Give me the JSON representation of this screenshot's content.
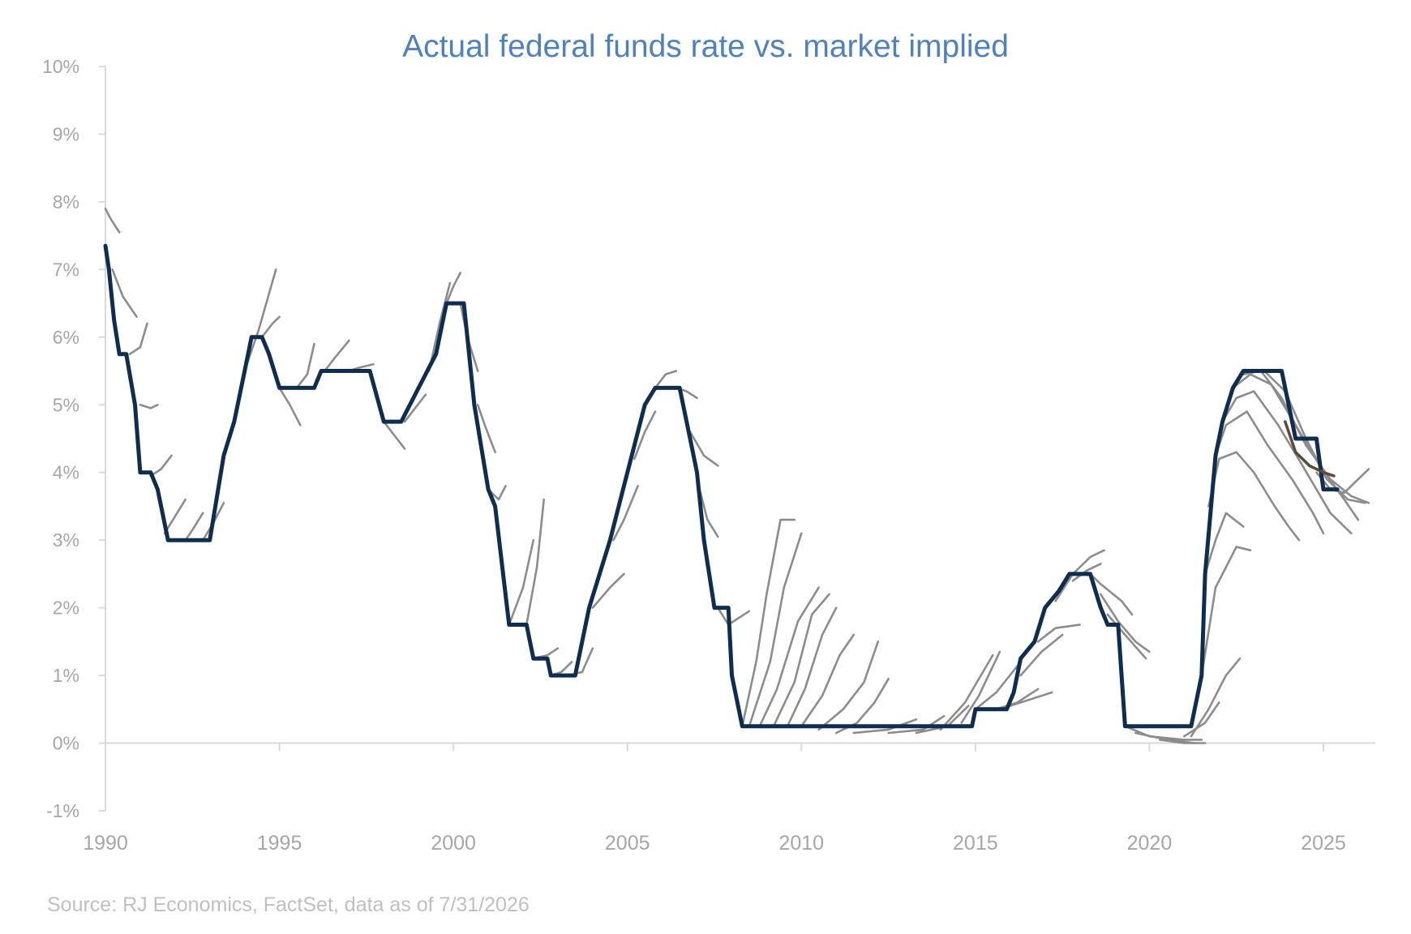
{
  "chart_data": {
    "type": "line",
    "title": "Actual federal funds rate vs. market implied",
    "source": "Source: RJ Economics, FactSet, data as of 7/31/2026",
    "xlabel": "",
    "ylabel": "",
    "xlim": [
      1990,
      2027
    ],
    "ylim": [
      -1,
      10
    ],
    "x_ticks": [
      1990,
      1995,
      2000,
      2005,
      2010,
      2015,
      2020,
      2025
    ],
    "x_tick_labels": [
      "1990",
      "1995",
      "2000",
      "2005",
      "2010",
      "2015",
      "2020",
      "2025"
    ],
    "y_ticks": [
      -1,
      0,
      1,
      2,
      3,
      4,
      5,
      6,
      7,
      8,
      9,
      10
    ],
    "y_tick_labels": [
      "-1%",
      "0%",
      "1%",
      "2%",
      "3%",
      "4%",
      "5%",
      "6%",
      "7%",
      "8%",
      "9%",
      "10%"
    ],
    "grid": false,
    "legend": "none",
    "colors": {
      "actual": "#0f2d4f",
      "implied": "#8c8c8c",
      "latest_implied": "#5a4a36",
      "title": "#4f81bd",
      "axis": "#d9d9d9",
      "tick_label": "#a6a6a6",
      "source": "#bfbfbf"
    },
    "actual": [
      [
        1990.0,
        7.35
      ],
      [
        1990.1,
        7.0
      ],
      [
        1990.25,
        6.25
      ],
      [
        1990.4,
        5.75
      ],
      [
        1990.6,
        5.75
      ],
      [
        1990.85,
        5.0
      ],
      [
        1991.0,
        4.0
      ],
      [
        1991.3,
        4.0
      ],
      [
        1991.5,
        3.75
      ],
      [
        1991.8,
        3.0
      ],
      [
        1992.5,
        3.0
      ],
      [
        1993.0,
        3.0
      ],
      [
        1993.4,
        4.25
      ],
      [
        1993.7,
        4.75
      ],
      [
        1994.0,
        5.5
      ],
      [
        1994.2,
        6.0
      ],
      [
        1994.5,
        6.0
      ],
      [
        1994.7,
        5.75
      ],
      [
        1995.0,
        5.25
      ],
      [
        1996.0,
        5.25
      ],
      [
        1996.2,
        5.5
      ],
      [
        1997.6,
        5.5
      ],
      [
        1998.0,
        4.75
      ],
      [
        1998.5,
        4.75
      ],
      [
        1999.0,
        5.25
      ],
      [
        1999.5,
        5.75
      ],
      [
        1999.8,
        6.5
      ],
      [
        2000.3,
        6.5
      ],
      [
        2000.6,
        5.0
      ],
      [
        2001.0,
        3.75
      ],
      [
        2001.2,
        3.5
      ],
      [
        2001.6,
        1.75
      ],
      [
        2002.1,
        1.75
      ],
      [
        2002.3,
        1.25
      ],
      [
        2002.7,
        1.25
      ],
      [
        2002.8,
        1.0
      ],
      [
        2003.5,
        1.0
      ],
      [
        2003.9,
        2.0
      ],
      [
        2004.5,
        3.0
      ],
      [
        2005.0,
        4.0
      ],
      [
        2005.5,
        5.0
      ],
      [
        2005.8,
        5.25
      ],
      [
        2006.0,
        5.25
      ],
      [
        2006.5,
        5.25
      ],
      [
        2006.8,
        4.5
      ],
      [
        2007.0,
        4.0
      ],
      [
        2007.2,
        3.0
      ],
      [
        2007.5,
        2.0
      ],
      [
        2007.9,
        2.0
      ],
      [
        2008.0,
        1.0
      ],
      [
        2008.3,
        0.25
      ],
      [
        2014.9,
        0.25
      ],
      [
        2015.0,
        0.5
      ],
      [
        2015.9,
        0.5
      ],
      [
        2016.1,
        0.75
      ],
      [
        2016.3,
        1.25
      ],
      [
        2016.7,
        1.5
      ],
      [
        2017.0,
        2.0
      ],
      [
        2017.4,
        2.25
      ],
      [
        2017.7,
        2.5
      ],
      [
        2018.3,
        2.5
      ],
      [
        2018.6,
        2.0
      ],
      [
        2018.8,
        1.75
      ],
      [
        2019.1,
        1.75
      ],
      [
        2019.3,
        0.25
      ],
      [
        2021.2,
        0.25
      ],
      [
        2021.5,
        1.0
      ],
      [
        2021.6,
        2.5
      ],
      [
        2021.9,
        4.25
      ],
      [
        2022.1,
        4.75
      ],
      [
        2022.4,
        5.25
      ],
      [
        2022.7,
        5.5
      ],
      [
        2023.8,
        5.5
      ],
      [
        2024.0,
        5.0
      ],
      [
        2024.2,
        4.5
      ],
      [
        2024.8,
        4.5
      ],
      [
        2025.0,
        3.75
      ],
      [
        2025.4,
        3.75
      ]
    ],
    "implied_paths": [
      [
        [
          1990.0,
          7.9
        ],
        [
          1990.15,
          7.75
        ],
        [
          1990.4,
          7.55
        ]
      ],
      [
        [
          1990.2,
          7.0
        ],
        [
          1990.5,
          6.6
        ],
        [
          1990.9,
          6.3
        ]
      ],
      [
        [
          1990.7,
          5.75
        ],
        [
          1991.0,
          5.85
        ],
        [
          1991.2,
          6.2
        ]
      ],
      [
        [
          1991.0,
          5.0
        ],
        [
          1991.3,
          4.95
        ],
        [
          1991.5,
          5.0
        ]
      ],
      [
        [
          1991.3,
          3.95
        ],
        [
          1991.6,
          4.05
        ],
        [
          1991.9,
          4.25
        ]
      ],
      [
        [
          1991.7,
          3.1
        ],
        [
          1992.0,
          3.35
        ],
        [
          1992.3,
          3.6
        ]
      ],
      [
        [
          1992.3,
          3.0
        ],
        [
          1992.5,
          3.15
        ],
        [
          1992.8,
          3.4
        ]
      ],
      [
        [
          1992.8,
          3.0
        ],
        [
          1993.1,
          3.25
        ],
        [
          1993.4,
          3.55
        ]
      ],
      [
        [
          1993.4,
          4.25
        ],
        [
          1993.7,
          4.8
        ],
        [
          1994.0,
          5.5
        ]
      ],
      [
        [
          1994.0,
          5.5
        ],
        [
          1994.4,
          6.1
        ],
        [
          1994.9,
          7.0
        ]
      ],
      [
        [
          1994.5,
          6.0
        ],
        [
          1994.8,
          6.2
        ],
        [
          1995.0,
          6.3
        ]
      ],
      [
        [
          1995.0,
          5.25
        ],
        [
          1995.3,
          5.0
        ],
        [
          1995.6,
          4.7
        ]
      ],
      [
        [
          1995.5,
          5.25
        ],
        [
          1995.8,
          5.45
        ],
        [
          1996.0,
          5.9
        ]
      ],
      [
        [
          1996.3,
          5.5
        ],
        [
          1996.6,
          5.7
        ],
        [
          1997.0,
          5.95
        ]
      ],
      [
        [
          1997.0,
          5.5
        ],
        [
          1997.3,
          5.55
        ],
        [
          1997.7,
          5.6
        ]
      ],
      [
        [
          1998.0,
          4.75
        ],
        [
          1998.3,
          4.55
        ],
        [
          1998.6,
          4.35
        ]
      ],
      [
        [
          1998.6,
          4.75
        ],
        [
          1998.9,
          4.95
        ],
        [
          1999.2,
          5.15
        ]
      ],
      [
        [
          1999.3,
          5.5
        ],
        [
          1999.6,
          6.2
        ],
        [
          1999.9,
          6.8
        ]
      ],
      [
        [
          1999.8,
          6.5
        ],
        [
          2000.0,
          6.75
        ],
        [
          2000.2,
          6.95
        ]
      ],
      [
        [
          2000.2,
          6.5
        ],
        [
          2000.4,
          6.0
        ],
        [
          2000.7,
          5.5
        ]
      ],
      [
        [
          2000.7,
          5.0
        ],
        [
          2000.9,
          4.7
        ],
        [
          2001.2,
          4.3
        ]
      ],
      [
        [
          2001.0,
          3.75
        ],
        [
          2001.3,
          3.6
        ],
        [
          2001.5,
          3.8
        ]
      ],
      [
        [
          2001.6,
          1.75
        ],
        [
          2002.0,
          2.3
        ],
        [
          2002.3,
          3.0
        ]
      ],
      [
        [
          2002.1,
          1.75
        ],
        [
          2002.4,
          2.6
        ],
        [
          2002.6,
          3.6
        ]
      ],
      [
        [
          2002.3,
          1.25
        ],
        [
          2002.7,
          1.3
        ],
        [
          2003.0,
          1.4
        ]
      ],
      [
        [
          2002.8,
          1.0
        ],
        [
          2003.1,
          1.05
        ],
        [
          2003.4,
          1.2
        ]
      ],
      [
        [
          2003.3,
          1.0
        ],
        [
          2003.7,
          1.05
        ],
        [
          2004.0,
          1.4
        ]
      ],
      [
        [
          2004.0,
          2.0
        ],
        [
          2004.5,
          2.3
        ],
        [
          2004.9,
          2.5
        ]
      ],
      [
        [
          2004.6,
          3.0
        ],
        [
          2004.9,
          3.3
        ],
        [
          2005.3,
          3.8
        ]
      ],
      [
        [
          2005.2,
          4.2
        ],
        [
          2005.5,
          4.6
        ],
        [
          2005.8,
          4.9
        ]
      ],
      [
        [
          2005.8,
          5.25
        ],
        [
          2006.1,
          5.45
        ],
        [
          2006.4,
          5.5
        ]
      ],
      [
        [
          2006.4,
          5.25
        ],
        [
          2006.7,
          5.2
        ],
        [
          2007.0,
          5.1
        ]
      ],
      [
        [
          2006.8,
          4.6
        ],
        [
          2007.2,
          4.25
        ],
        [
          2007.6,
          4.1
        ]
      ],
      [
        [
          2007.1,
          3.7
        ],
        [
          2007.3,
          3.3
        ],
        [
          2007.6,
          3.05
        ]
      ],
      [
        [
          2007.6,
          2.0
        ],
        [
          2007.9,
          1.75
        ],
        [
          2008.5,
          1.95
        ]
      ],
      [
        [
          2008.3,
          0.25
        ],
        [
          2008.7,
          1.2
        ],
        [
          2009.0,
          2.2
        ],
        [
          2009.4,
          3.3
        ],
        [
          2009.8,
          3.3
        ]
      ],
      [
        [
          2008.5,
          0.25
        ],
        [
          2009.1,
          1.2
        ],
        [
          2009.5,
          2.3
        ],
        [
          2010.0,
          3.1
        ]
      ],
      [
        [
          2008.8,
          0.25
        ],
        [
          2009.3,
          0.8
        ],
        [
          2009.9,
          1.8
        ],
        [
          2010.5,
          2.3
        ]
      ],
      [
        [
          2009.2,
          0.25
        ],
        [
          2009.8,
          0.9
        ],
        [
          2010.3,
          1.9
        ],
        [
          2010.8,
          2.2
        ]
      ],
      [
        [
          2009.6,
          0.25
        ],
        [
          2010.1,
          0.8
        ],
        [
          2010.6,
          1.6
        ],
        [
          2011.0,
          2.0
        ]
      ],
      [
        [
          2010.0,
          0.25
        ],
        [
          2010.6,
          0.7
        ],
        [
          2011.1,
          1.3
        ],
        [
          2011.5,
          1.6
        ]
      ],
      [
        [
          2010.5,
          0.2
        ],
        [
          2011.2,
          0.5
        ],
        [
          2011.8,
          0.9
        ],
        [
          2012.2,
          1.5
        ]
      ],
      [
        [
          2011.0,
          0.15
        ],
        [
          2011.6,
          0.3
        ],
        [
          2012.1,
          0.6
        ],
        [
          2012.5,
          0.95
        ]
      ],
      [
        [
          2011.5,
          0.15
        ],
        [
          2012.5,
          0.2
        ],
        [
          2013.3,
          0.35
        ]
      ],
      [
        [
          2012.5,
          0.15
        ],
        [
          2013.5,
          0.2
        ],
        [
          2014.1,
          0.4
        ]
      ],
      [
        [
          2013.3,
          0.15
        ],
        [
          2014.2,
          0.25
        ],
        [
          2014.8,
          0.55
        ]
      ],
      [
        [
          2014.0,
          0.2
        ],
        [
          2014.7,
          0.6
        ],
        [
          2015.5,
          1.3
        ]
      ],
      [
        [
          2014.6,
          0.3
        ],
        [
          2015.1,
          0.7
        ],
        [
          2015.7,
          1.35
        ]
      ],
      [
        [
          2015.0,
          0.5
        ],
        [
          2015.6,
          0.75
        ],
        [
          2016.3,
          1.2
        ]
      ],
      [
        [
          2015.6,
          0.5
        ],
        [
          2016.2,
          0.6
        ],
        [
          2016.8,
          0.8
        ]
      ],
      [
        [
          2016.0,
          0.55
        ],
        [
          2016.6,
          0.65
        ],
        [
          2017.2,
          0.75
        ]
      ],
      [
        [
          2016.3,
          1.0
        ],
        [
          2016.9,
          1.35
        ],
        [
          2017.5,
          1.6
        ]
      ],
      [
        [
          2016.8,
          1.5
        ],
        [
          2017.3,
          1.7
        ],
        [
          2018.0,
          1.75
        ]
      ],
      [
        [
          2017.3,
          2.1
        ],
        [
          2017.8,
          2.5
        ],
        [
          2018.3,
          2.75
        ],
        [
          2018.7,
          2.85
        ]
      ],
      [
        [
          2017.8,
          2.4
        ],
        [
          2018.2,
          2.55
        ],
        [
          2018.6,
          2.65
        ]
      ],
      [
        [
          2018.3,
          2.5
        ],
        [
          2018.6,
          2.35
        ],
        [
          2019.2,
          2.1
        ],
        [
          2019.5,
          1.9
        ]
      ],
      [
        [
          2018.6,
          2.2
        ],
        [
          2019.1,
          1.8
        ],
        [
          2019.6,
          1.5
        ],
        [
          2020.0,
          1.35
        ]
      ],
      [
        [
          2018.8,
          1.9
        ],
        [
          2019.3,
          1.6
        ],
        [
          2019.9,
          1.25
        ]
      ],
      [
        [
          2019.3,
          0.25
        ],
        [
          2020.0,
          0.1
        ],
        [
          2021.0,
          0.05
        ],
        [
          2021.5,
          0.05
        ]
      ],
      [
        [
          2019.6,
          0.15
        ],
        [
          2020.5,
          0.05
        ],
        [
          2021.3,
          0.0
        ]
      ],
      [
        [
          2020.3,
          0.05
        ],
        [
          2021.0,
          0.0
        ],
        [
          2021.6,
          0.0
        ]
      ],
      [
        [
          2021.2,
          0.1
        ],
        [
          2021.7,
          0.5
        ],
        [
          2022.2,
          1.0
        ],
        [
          2022.6,
          1.25
        ]
      ],
      [
        [
          2021.0,
          0.1
        ],
        [
          2021.6,
          0.3
        ],
        [
          2022.0,
          0.6
        ]
      ],
      [
        [
          2021.5,
          1.0
        ],
        [
          2021.9,
          2.3
        ],
        [
          2022.5,
          2.9
        ],
        [
          2022.9,
          2.85
        ]
      ],
      [
        [
          2021.6,
          2.5
        ],
        [
          2021.9,
          3.0
        ],
        [
          2022.2,
          3.4
        ],
        [
          2022.7,
          3.2
        ]
      ],
      [
        [
          2021.7,
          3.5
        ],
        [
          2022.0,
          4.2
        ],
        [
          2022.5,
          4.3
        ],
        [
          2023.0,
          4.0
        ],
        [
          2023.6,
          3.5
        ],
        [
          2024.0,
          3.2
        ],
        [
          2024.3,
          3.0
        ]
      ],
      [
        [
          2021.9,
          4.25
        ],
        [
          2022.2,
          4.7
        ],
        [
          2022.8,
          4.9
        ],
        [
          2023.4,
          4.4
        ],
        [
          2024.1,
          3.9
        ],
        [
          2024.7,
          3.4
        ],
        [
          2025.0,
          3.1
        ]
      ],
      [
        [
          2022.1,
          4.75
        ],
        [
          2022.5,
          5.1
        ],
        [
          2023.0,
          5.2
        ],
        [
          2023.7,
          4.7
        ],
        [
          2024.4,
          4.1
        ],
        [
          2025.2,
          3.4
        ],
        [
          2025.8,
          3.1
        ]
      ],
      [
        [
          2022.4,
          5.25
        ],
        [
          2022.9,
          5.45
        ],
        [
          2023.5,
          5.3
        ],
        [
          2024.2,
          4.7
        ],
        [
          2024.9,
          4.1
        ],
        [
          2025.6,
          3.6
        ],
        [
          2026.0,
          3.3
        ]
      ],
      [
        [
          2022.7,
          5.45
        ],
        [
          2023.2,
          5.5
        ],
        [
          2023.8,
          5.1
        ],
        [
          2024.5,
          4.4
        ],
        [
          2025.2,
          3.9
        ],
        [
          2025.8,
          3.65
        ],
        [
          2026.3,
          3.55
        ]
      ],
      [
        [
          2023.3,
          5.5
        ],
        [
          2023.9,
          5.2
        ],
        [
          2024.5,
          4.5
        ],
        [
          2025.1,
          3.9
        ],
        [
          2025.7,
          3.6
        ],
        [
          2026.2,
          3.55
        ]
      ],
      [
        [
          2024.8,
          4.0
        ],
        [
          2025.2,
          3.75
        ],
        [
          2025.6,
          3.7
        ],
        [
          2025.9,
          3.85
        ],
        [
          2026.3,
          4.05
        ]
      ]
    ],
    "latest_implied": [
      [
        2023.9,
        4.75
      ],
      [
        2024.2,
        4.3
      ],
      [
        2024.6,
        4.1
      ],
      [
        2025.0,
        4.0
      ],
      [
        2025.3,
        3.95
      ]
    ]
  }
}
